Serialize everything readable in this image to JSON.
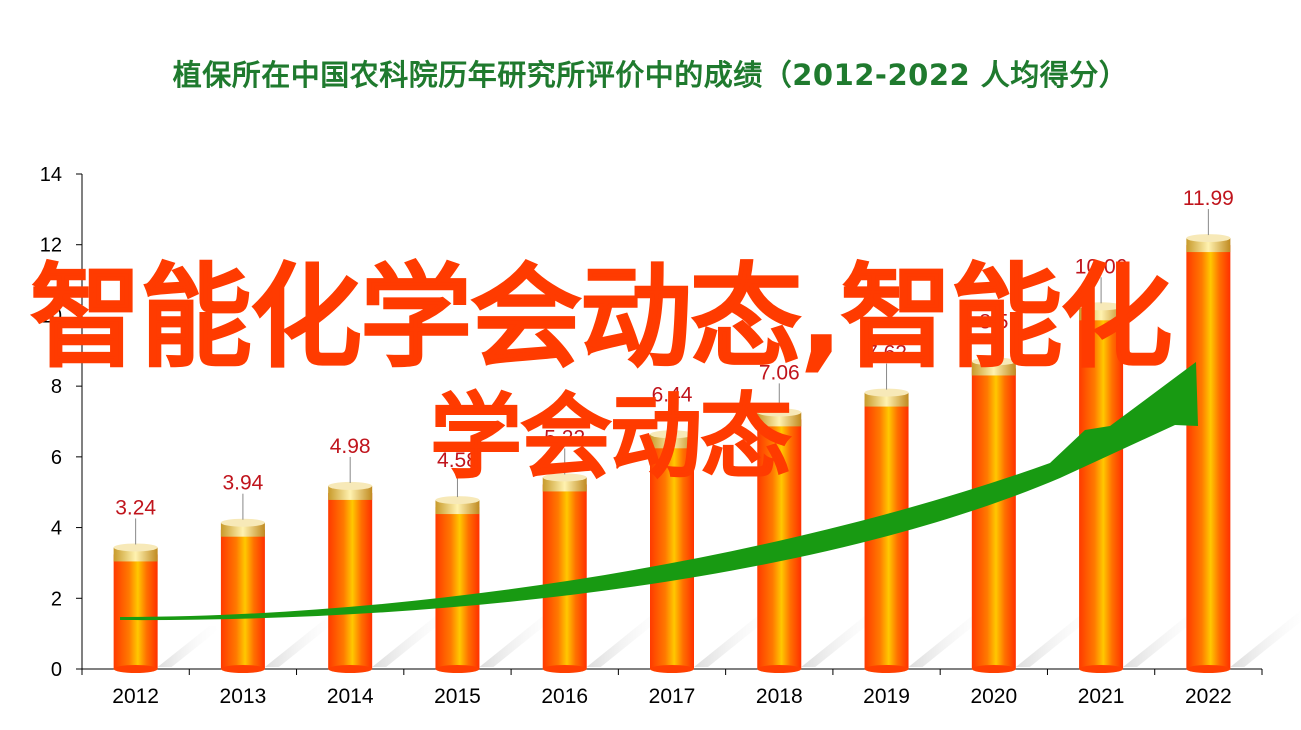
{
  "title": "植保所在中国农科院历年研究所评价中的成绩（2012-2022  人均得分）",
  "watermark": [
    "智能化学会动态,智能化",
    "学会动态"
  ],
  "colors": {
    "title": "#1f7a2e",
    "bar_main": "#ff4a00",
    "bar_highlight": "#ffd000",
    "bar_cap": "#f3d27a",
    "label": "#c0141c",
    "arrow": "#189a12",
    "watermark": "#ff3b00"
  },
  "chart_data": {
    "type": "bar",
    "categories": [
      "2012",
      "2013",
      "2014",
      "2015",
      "2016",
      "2017",
      "2018",
      "2019",
      "2020",
      "2021",
      "2022"
    ],
    "values": [
      3.24,
      3.94,
      4.98,
      4.58,
      5.22,
      6.44,
      7.06,
      7.62,
      8.5,
      10.06,
      11.99
    ],
    "data_labels": [
      "3.24",
      "3.94",
      "4.98",
      "4.58",
      "5.22",
      "6.44",
      "7.06",
      "7.62",
      "8.5",
      "10.06",
      "11.99"
    ],
    "yticks": [
      "0",
      "2",
      "4",
      "6",
      "8",
      "10",
      "12",
      "14"
    ],
    "ylim": [
      0,
      14
    ],
    "title": "植保所在中国农科院历年研究所评价中的成绩（2012-2022  人均得分）",
    "xlabel": "",
    "ylabel": "",
    "grid": false,
    "legend": "none",
    "trend_arrow": true
  }
}
